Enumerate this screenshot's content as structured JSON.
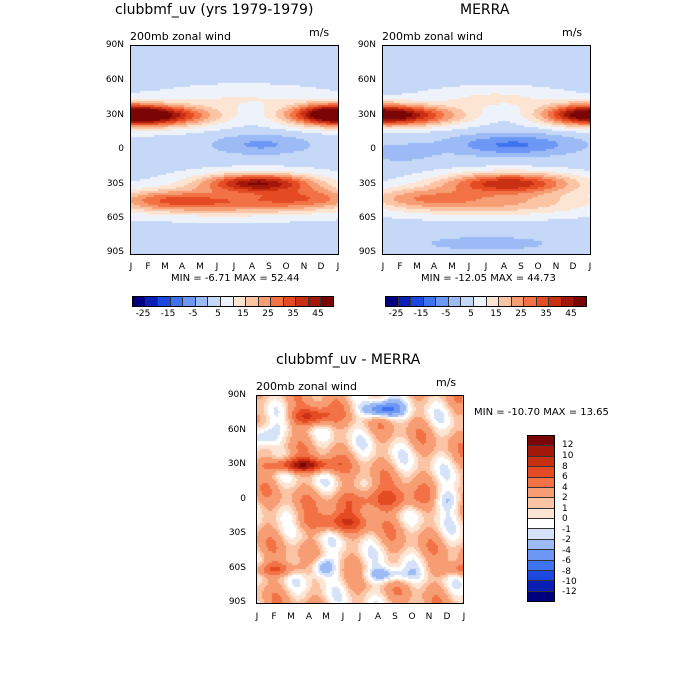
{
  "chart_data": [
    {
      "type": "heatmap",
      "title": "clubbmf_uv (yrs 1979-1979)",
      "subtitle": "200mb zonal wind",
      "units": "m/s",
      "minmax_label": "MIN =  -6.71 MAX =  52.44",
      "min": -6.71,
      "max": 52.44,
      "xticks": [
        "J",
        "F",
        "M",
        "A",
        "M",
        "J",
        "J",
        "A",
        "S",
        "O",
        "N",
        "D",
        "J"
      ],
      "yticks": [
        "90N",
        "60N",
        "30N",
        "0",
        "30S",
        "60S",
        "90S"
      ],
      "colorbar_ticks": [
        "-25",
        "-15",
        "-5",
        "5",
        "15",
        "25",
        "35",
        "45"
      ],
      "levels": [
        -30,
        -25,
        -20,
        -15,
        -10,
        -5,
        0,
        5,
        10,
        15,
        20,
        25,
        30,
        35,
        40,
        45,
        50
      ],
      "description_features": [
        {
          "lat": 30,
          "month": 1.5,
          "value": 48
        },
        {
          "lat": -30,
          "month": 7.5,
          "value": 45
        },
        {
          "lat": 0,
          "month": 8,
          "value": -5
        }
      ]
    },
    {
      "type": "heatmap",
      "title": "MERRA",
      "subtitle": "200mb zonal wind",
      "units": "m/s",
      "minmax_label": "MIN = -12.05 MAX =  44.73",
      "min": -12.05,
      "max": 44.73,
      "xticks": [
        "J",
        "F",
        "M",
        "A",
        "M",
        "J",
        "J",
        "A",
        "S",
        "O",
        "N",
        "D",
        "J"
      ],
      "yticks": [
        "90N",
        "60N",
        "30N",
        "0",
        "30S",
        "60S",
        "90S"
      ],
      "colorbar_ticks": [
        "-25",
        "-15",
        "-5",
        "5",
        "15",
        "25",
        "35",
        "45"
      ],
      "levels": [
        -30,
        -25,
        -20,
        -15,
        -10,
        -5,
        0,
        5,
        10,
        15,
        20,
        25,
        30,
        35,
        40,
        45,
        50
      ]
    },
    {
      "type": "heatmap",
      "title": "clubbmf_uv - MERRA",
      "subtitle": "200mb zonal wind",
      "units": "m/s",
      "minmax_label": "MIN = -10.70 MAX =  13.65",
      "min": -10.7,
      "max": 13.65,
      "xticks": [
        "J",
        "F",
        "M",
        "A",
        "M",
        "J",
        "J",
        "A",
        "S",
        "O",
        "N",
        "D",
        "J"
      ],
      "yticks": [
        "90N",
        "60N",
        "30N",
        "0",
        "30S",
        "60S",
        "90S"
      ],
      "colorbar_ticks": [
        "12",
        "10",
        "8",
        "6",
        "4",
        "2",
        "1",
        "0",
        "-1",
        "-2",
        "-4",
        "-6",
        "-8",
        "-10",
        "-12"
      ]
    }
  ],
  "palette": {
    "full": [
      "#00007f",
      "#0a1fb5",
      "#1d48e0",
      "#3e73f0",
      "#6d97f4",
      "#9bbaf6",
      "#c6d8f8",
      "#eef3fb",
      "#fde5d4",
      "#fbc4a5",
      "#f79d73",
      "#f27245",
      "#e54b23",
      "#c92f12",
      "#a3170b",
      "#7a0505"
    ],
    "diff": [
      "#7a0505",
      "#a3170b",
      "#c92f12",
      "#e54b23",
      "#f27245",
      "#f79d73",
      "#fbc4a5",
      "#fde5d4",
      "#ffffff",
      "#d5e2f7",
      "#9bbaf6",
      "#6d97f4",
      "#3e73f0",
      "#1d48e0",
      "#0a1fb5",
      "#00007f"
    ]
  }
}
